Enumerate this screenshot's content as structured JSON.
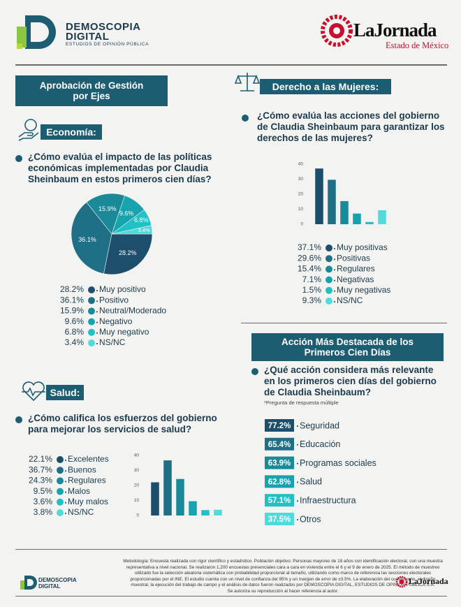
{
  "header": {
    "brand": "DEMOSCOPIA",
    "brand_line2": "DIGITAL",
    "tagline": "ESTUDIOS DE OPINIÓN PÚBLICA",
    "partner": "LaJornada",
    "partner_sub": "Estado de México"
  },
  "banner": "Aprobación de Gestión por Ejes",
  "chart_data": [
    {
      "type": "pie",
      "section": "Economía:",
      "title": "¿Cómo evalúa el impacto de las políticas económicas implementadas por Claudia Sheinbaum en estos primeros cien días?",
      "categories": [
        "Muy positivo",
        "Positivo",
        "Neutral/Moderado",
        "Negativo",
        "Muy negativo",
        "NS/NC"
      ],
      "values": [
        28.2,
        36.1,
        15.9,
        9.6,
        6.8,
        3.4
      ],
      "value_labels": [
        "28.2%",
        "36.1%",
        "15.9%",
        "9.6%",
        "6.8%",
        "3.4%"
      ],
      "colors": [
        "#1d4e6b",
        "#1f6f86",
        "#1a8a98",
        "#17a3ad",
        "#22bfc4",
        "#4fdadb"
      ]
    },
    {
      "type": "bar",
      "section": "Salud:",
      "title": "¿Cómo califica los esfuerzos del gobierno para mejorar los servicios de salud?",
      "categories": [
        "Excelentes",
        "Buenos",
        "Regulares",
        "Malos",
        "Muy malos",
        "NS/NC"
      ],
      "values": [
        22.1,
        36.7,
        24.3,
        9.5,
        3.6,
        3.8
      ],
      "value_labels": [
        "22.1%",
        "36.7%",
        "24.3%",
        "9.5%",
        "3.6%",
        "3.8%"
      ],
      "colors": [
        "#1d4e6b",
        "#1f6f86",
        "#1a8a98",
        "#17a3ad",
        "#22bfc4",
        "#4fdadb"
      ],
      "ylim": [
        0,
        40
      ],
      "yticks": [
        0,
        10,
        20,
        30,
        40
      ]
    },
    {
      "type": "bar",
      "section": "Derecho a las Mujeres:",
      "title": "¿Cómo evalúa las acciones del gobierno de Claudia Sheinbaum para garantizar los derechos de las mujeres?",
      "categories": [
        "Muy positivas",
        "Positivas",
        "Regulares",
        "Negativas",
        "Muy negativas",
        "NS/NC"
      ],
      "values": [
        37.1,
        29.6,
        15.4,
        7.1,
        1.5,
        9.3
      ],
      "value_labels": [
        "37.1%",
        "29.6%",
        "15.4%",
        "7.1%",
        "1.5%",
        "9.3%"
      ],
      "colors": [
        "#1d4e6b",
        "#1f6f86",
        "#1a8a98",
        "#17a3ad",
        "#22bfc4",
        "#4fdadb"
      ],
      "ylim": [
        0,
        40
      ],
      "yticks": [
        0,
        10,
        20,
        30,
        40
      ]
    },
    {
      "type": "ranking",
      "section": "Acción Más Destacada de los Primeros Cien Días",
      "title": "¿Qué acción considera más relevante en los primeros cien días del gobierno de Claudia Sheinbaum?",
      "note": "*Pregunta de respuesta múltiple",
      "categories": [
        "Seguridad",
        "Educación",
        "Programas sociales",
        "Salud",
        "Infraestructura",
        "Otros"
      ],
      "values": [
        77.2,
        65.4,
        63.9,
        62.8,
        57.1,
        37.5
      ],
      "value_labels": [
        "77.2%",
        "65.4%",
        "63.9%",
        "62.8%",
        "57.1%",
        "37.5%"
      ],
      "colors": [
        "#1d4e6b",
        "#1f6f86",
        "#1a8a98",
        "#17a3ad",
        "#22bfc4",
        "#4fdadb"
      ]
    }
  ],
  "methodology": [
    "Metodología: Encuesta realizada con rigor científico y estadístico. Población objetivo: Personas mayores de 18 años con identificación electoral, con una muestra representativa a nivel nacional. Se realizaron 1,200 encuestas presenciales cara a cara en vivienda entre el 6 y el 9 de enero de 2025. El método de muestreo utilizado fue la selección aleatoria sistemática con probabilidad proporcional al tamaño, utilizando como marco de referencia las secciones electorales proporcionadas por el INE. El estudio cuenta con un nivel de confianza del 95% y un margen de error de ±3.5%. La elaboración del cuestionario, el diseño muestral, la ejecución del trabajo de campo y el análisis de datos fueron realizados por DEMOSCOPIA DIGITAL, ESTUDIOS DE OPINIÓN PÚBLICA S.A.",
    "Se autoriza su reproducción al hacer referencia al autor."
  ],
  "footer": {
    "brand": "DEMOSCOPIA",
    "brand_line2": "DIGITAL",
    "partner": "LaJornada"
  }
}
